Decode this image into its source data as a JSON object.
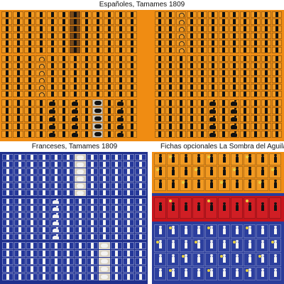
{
  "titles": {
    "spanish": "Españoles, Tamames 1809",
    "french": "Franceses, Tamames 1809",
    "optional": "Fichas opcionales La Sombra del Aguila (Info"
  },
  "colors": {
    "spanish_sheet": "#f08c12",
    "french_sheet": "#1f2f8c",
    "optional_orange": "#f08c12",
    "optional_red": "#c8141c",
    "optional_blue": "#2a3c9a"
  },
  "icons": {
    "infantry": "soldier-silhouette",
    "cavalry": "horseman-silhouette",
    "artillery": "cannon-silhouette",
    "leader": "portrait-photo",
    "marker": "ring-marker"
  }
}
